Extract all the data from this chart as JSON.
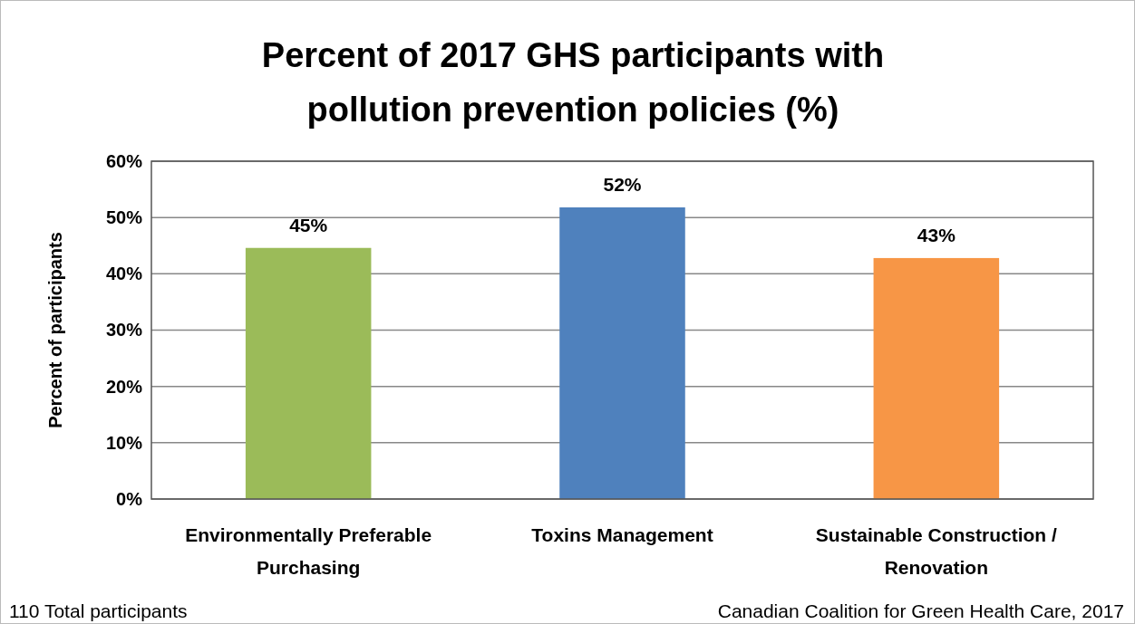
{
  "chart_data": {
    "type": "bar",
    "title": "Percent of 2017 GHS participants with pollution prevention policies (%)",
    "ylabel": "Percent of participants",
    "categories": [
      "Environmentally Preferable Purchasing",
      "Toxins Management",
      "Sustainable Construction / Renovation"
    ],
    "values": [
      44.6,
      51.8,
      42.8
    ],
    "value_labels": [
      "45%",
      "52%",
      "43%"
    ],
    "colors": [
      "#9bbb59",
      "#4f81bd",
      "#f79646"
    ],
    "ylim": [
      0,
      60
    ],
    "yticks": [
      {
        "value": 0,
        "label": "0%"
      },
      {
        "value": 10,
        "label": "10%"
      },
      {
        "value": 20,
        "label": "20%"
      },
      {
        "value": 30,
        "label": "30%"
      },
      {
        "value": 40,
        "label": "40%"
      },
      {
        "value": 50,
        "label": "50%"
      },
      {
        "value": 60,
        "label": "60%"
      }
    ],
    "grid": "y",
    "annotations": [
      "110 Total participants",
      "Canadian Coalition for Green Health Care, 2017"
    ]
  }
}
